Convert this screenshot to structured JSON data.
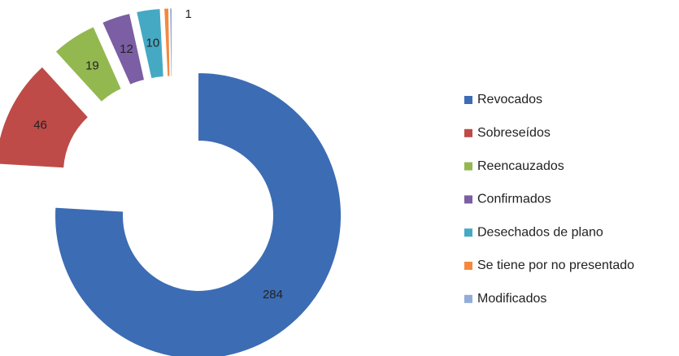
{
  "chart_data": {
    "type": "donut",
    "categories": [
      "Revocados",
      "Sobreseídos",
      "Reencauzados",
      "Confirmados",
      "Desechados de plano",
      "Se tiene por no presentado",
      "Modificados"
    ],
    "values": [
      284,
      46,
      19,
      12,
      10,
      2,
      1
    ],
    "colors": [
      "#3c6cb4",
      "#be4b48",
      "#93b850",
      "#7b5ea3",
      "#45a9c4",
      "#f4893e",
      "#93acd8"
    ],
    "legend": "right"
  }
}
